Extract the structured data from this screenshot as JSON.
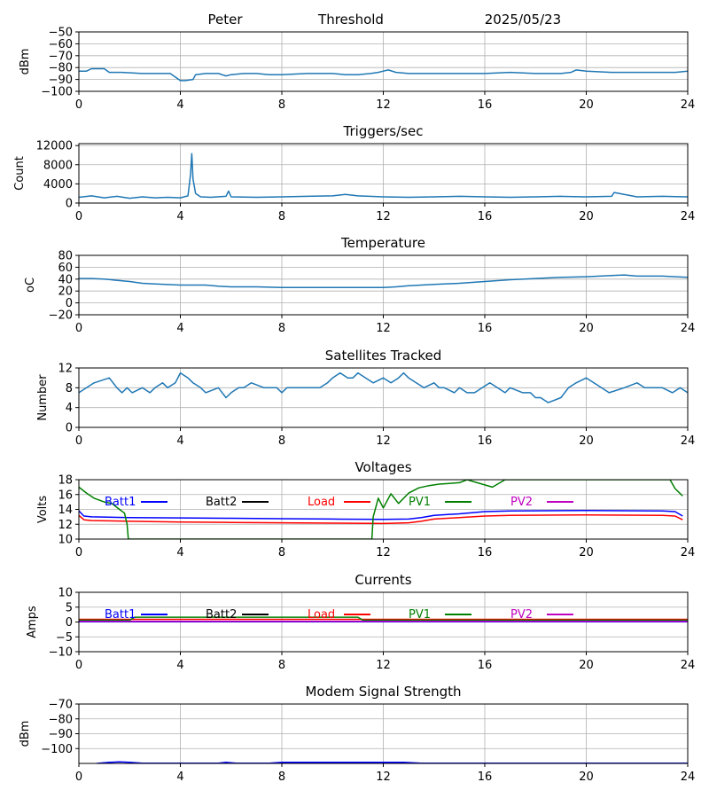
{
  "header": {
    "station": "Peter",
    "mode": "Threshold",
    "date": "2025/05/23"
  },
  "chart_data": [
    {
      "id": "signal",
      "type": "line",
      "title": "",
      "ylabel": "dBm",
      "xlim": [
        0,
        24
      ],
      "xticks": [
        0,
        4,
        8,
        12,
        16,
        20,
        24
      ],
      "ylim": [
        -100,
        -50
      ],
      "yticks": [
        -100,
        -90,
        -80,
        -70,
        -60,
        -50
      ],
      "grid": true,
      "series": [
        {
          "color": "#1f77b4",
          "x": [
            0,
            0.3,
            0.5,
            1.0,
            1.2,
            1.7,
            2.5,
            3.6,
            3.8,
            4.0,
            4.2,
            4.5,
            4.6,
            5.0,
            5.5,
            5.8,
            6.0,
            6.5,
            7.0,
            7.5,
            8.0,
            9.0,
            10.0,
            10.5,
            11.0,
            11.5,
            11.8,
            12.0,
            12.2,
            12.5,
            13.0,
            14.0,
            15.0,
            16.0,
            17.0,
            18.0,
            19.0,
            19.4,
            19.6,
            20.0,
            21.0,
            22.0,
            23.0,
            23.5,
            24
          ],
          "y": [
            -83,
            -83,
            -81,
            -81,
            -84,
            -84,
            -85,
            -85,
            -88,
            -91,
            -91,
            -90,
            -86,
            -85,
            -85,
            -87,
            -86,
            -85,
            -85,
            -86,
            -86,
            -85,
            -85,
            -86,
            -86,
            -85,
            -84,
            -83,
            -82,
            -84,
            -85,
            -85,
            -85,
            -85,
            -84,
            -85,
            -85,
            -84,
            -82,
            -83,
            -84,
            -84,
            -84,
            -84,
            -83
          ]
        }
      ]
    },
    {
      "id": "triggers",
      "type": "line",
      "title": "Triggers/sec",
      "ylabel": "Count",
      "xlim": [
        0,
        24
      ],
      "xticks": [
        0,
        4,
        8,
        12,
        16,
        20,
        24
      ],
      "ylim": [
        0,
        12400
      ],
      "yticks": [
        0,
        4000,
        8000,
        12000
      ],
      "grid": true,
      "series": [
        {
          "color": "#1f77b4",
          "x": [
            0,
            0.5,
            1.0,
            1.5,
            2.0,
            2.5,
            3.0,
            3.5,
            4.0,
            4.3,
            4.4,
            4.45,
            4.5,
            4.6,
            4.8,
            5.2,
            5.8,
            5.9,
            6.0,
            7.0,
            8.0,
            9.0,
            10.0,
            10.5,
            11.0,
            12.0,
            13.0,
            14.0,
            15.0,
            16.0,
            17.0,
            18.0,
            19.0,
            20.0,
            21.0,
            21.1,
            22.0,
            23.0,
            24
          ],
          "y": [
            1200,
            1500,
            1100,
            1400,
            1000,
            1300,
            1100,
            1200,
            1100,
            1500,
            6000,
            10300,
            5000,
            2000,
            1300,
            1200,
            1400,
            2500,
            1300,
            1200,
            1300,
            1400,
            1500,
            1800,
            1500,
            1300,
            1200,
            1300,
            1400,
            1300,
            1200,
            1300,
            1400,
            1300,
            1400,
            2200,
            1300,
            1400,
            1300
          ]
        }
      ]
    },
    {
      "id": "temperature",
      "type": "line",
      "title": "Temperature",
      "ylabel": "oC",
      "xlim": [
        0,
        24
      ],
      "xticks": [
        0,
        4,
        8,
        12,
        16,
        20,
        24
      ],
      "ylim": [
        -20,
        80
      ],
      "yticks": [
        -20,
        0,
        20,
        40,
        60,
        80
      ],
      "grid": true,
      "series": [
        {
          "color": "#1f77b4",
          "x": [
            0,
            0.5,
            1.0,
            2.0,
            2.5,
            3.0,
            4.0,
            4.5,
            5.0,
            5.5,
            6.0,
            7.0,
            8.0,
            9.0,
            10.0,
            11.0,
            12.0,
            12.5,
            13.0,
            14.0,
            15.0,
            16.0,
            17.0,
            18.0,
            19.0,
            20.0,
            21.0,
            21.5,
            22.0,
            23.0,
            23.5,
            24
          ],
          "y": [
            41,
            41,
            40,
            36,
            33,
            32,
            30,
            30,
            30,
            28,
            27,
            27,
            26,
            26,
            26,
            26,
            26,
            27,
            29,
            31,
            33,
            36,
            39,
            41,
            43,
            44,
            46,
            47,
            45,
            45,
            44,
            43
          ]
        }
      ]
    },
    {
      "id": "satellites",
      "type": "line",
      "title": "Satellites Tracked",
      "ylabel": "Number",
      "xlim": [
        0,
        24
      ],
      "xticks": [
        0,
        4,
        8,
        12,
        16,
        20,
        24
      ],
      "ylim": [
        0,
        12
      ],
      "yticks": [
        0,
        4,
        8,
        12
      ],
      "grid": true,
      "series": [
        {
          "color": "#1f77b4",
          "x": [
            0,
            0.3,
            0.6,
            1.2,
            1.5,
            1.7,
            1.9,
            2.1,
            2.5,
            2.8,
            3.0,
            3.3,
            3.5,
            3.8,
            4.0,
            4.3,
            4.5,
            4.8,
            5.0,
            5.5,
            5.8,
            6.0,
            6.3,
            6.5,
            6.8,
            7.3,
            7.8,
            8.0,
            8.2,
            8.5,
            9.0,
            9.5,
            9.8,
            10.0,
            10.3,
            10.6,
            10.8,
            11.0,
            11.3,
            11.6,
            12.0,
            12.3,
            12.6,
            12.8,
            13.0,
            13.3,
            13.6,
            14.0,
            14.2,
            14.4,
            14.8,
            15.0,
            15.3,
            15.6,
            15.9,
            16.2,
            16.5,
            16.8,
            17.0,
            17.5,
            17.8,
            18.0,
            18.2,
            18.5,
            19.0,
            19.3,
            19.6,
            20.0,
            20.3,
            20.6,
            20.9,
            21.5,
            22.0,
            22.3,
            22.6,
            23.0,
            23.4,
            23.7,
            24
          ],
          "y": [
            7,
            8,
            9,
            10,
            8,
            7,
            8,
            7,
            8,
            7,
            8,
            9,
            8,
            9,
            11,
            10,
            9,
            8,
            7,
            8,
            6,
            7,
            8,
            8,
            9,
            8,
            8,
            7,
            8,
            8,
            8,
            8,
            9,
            10,
            11,
            10,
            10,
            11,
            10,
            9,
            10,
            9,
            10,
            11,
            10,
            9,
            8,
            9,
            8,
            8,
            7,
            8,
            7,
            7,
            8,
            9,
            8,
            7,
            8,
            7,
            7,
            6,
            6,
            5,
            6,
            8,
            9,
            10,
            9,
            8,
            7,
            8,
            9,
            8,
            8,
            8,
            7,
            8,
            7
          ]
        }
      ]
    },
    {
      "id": "voltages",
      "type": "line",
      "title": "Voltages",
      "ylabel": "Volts",
      "xlim": [
        0,
        24
      ],
      "xticks": [
        0,
        4,
        8,
        12,
        16,
        20,
        24
      ],
      "ylim": [
        10,
        18
      ],
      "yticks": [
        10,
        12,
        14,
        16,
        18
      ],
      "grid": true,
      "series": [
        {
          "name": "Batt1",
          "color": "#0000ff",
          "x": [
            0,
            0.2,
            0.5,
            2,
            4,
            6,
            8,
            10,
            12,
            13,
            13.5,
            14,
            15,
            16,
            17,
            20,
            23,
            23.5,
            23.8
          ],
          "y": [
            13.8,
            13.1,
            13.0,
            12.9,
            12.85,
            12.8,
            12.75,
            12.7,
            12.65,
            12.7,
            12.9,
            13.2,
            13.4,
            13.7,
            13.8,
            13.85,
            13.8,
            13.7,
            13.1
          ]
        },
        {
          "name": "Batt2",
          "color": "#000000",
          "x": [],
          "y": []
        },
        {
          "name": "Load",
          "color": "#ff0000",
          "x": [
            0,
            0.2,
            0.5,
            2,
            4,
            6,
            8,
            10,
            12,
            13,
            13.5,
            14,
            15,
            16,
            17,
            20,
            23,
            23.5,
            23.8
          ],
          "y": [
            13.2,
            12.6,
            12.5,
            12.4,
            12.3,
            12.25,
            12.2,
            12.15,
            12.1,
            12.2,
            12.4,
            12.7,
            12.9,
            13.1,
            13.2,
            13.25,
            13.2,
            13.1,
            12.6
          ]
        },
        {
          "name": "PV1",
          "color": "#008000",
          "x": [
            0,
            0.3,
            0.6,
            1.0,
            1.3,
            1.6,
            1.8,
            1.9,
            1.95,
            11.55,
            11.6,
            11.8,
            12.0,
            12.3,
            12.6,
            13.0,
            13.4,
            13.8,
            14.2,
            14.6,
            15.0,
            15.3,
            15.7,
            16.0,
            16.3,
            16.6,
            16.8,
            23.3,
            23.5,
            23.8
          ],
          "y": [
            17.0,
            16.2,
            15.5,
            15.0,
            14.8,
            14.0,
            13.5,
            12.0,
            10.0,
            10.0,
            13.0,
            15.5,
            14.2,
            16.1,
            14.8,
            16.2,
            16.9,
            17.2,
            17.4,
            17.5,
            17.6,
            18.0,
            17.6,
            17.3,
            17.0,
            17.6,
            18.0,
            18.0,
            16.8,
            15.8
          ]
        },
        {
          "name": "PV2",
          "color": "#bf00bf",
          "x": [],
          "y": []
        }
      ]
    },
    {
      "id": "currents",
      "type": "line",
      "title": "Currents",
      "ylabel": "Amps",
      "xlim": [
        0,
        24
      ],
      "xticks": [
        0,
        4,
        8,
        12,
        16,
        20,
        24
      ],
      "ylim": [
        -10,
        10
      ],
      "yticks": [
        -10,
        -5,
        0,
        5,
        10
      ],
      "grid": true,
      "series": [
        {
          "name": "Batt1",
          "color": "#0000ff",
          "x": [
            0,
            24
          ],
          "y": [
            0.1,
            0.1
          ]
        },
        {
          "name": "Batt2",
          "color": "#000000",
          "x": [],
          "y": []
        },
        {
          "name": "Load",
          "color": "#ff0000",
          "x": [
            0,
            24
          ],
          "y": [
            0.9,
            0.9
          ]
        },
        {
          "name": "PV1",
          "color": "#008000",
          "x": [
            0,
            2.0,
            2.2,
            11.0,
            11.2,
            24
          ],
          "y": [
            0.6,
            0.6,
            1.6,
            1.6,
            0.6,
            0.6
          ]
        },
        {
          "name": "PV2",
          "color": "#bf00bf",
          "x": [
            0,
            24
          ],
          "y": [
            0.2,
            0.2
          ]
        }
      ]
    },
    {
      "id": "modem",
      "type": "line",
      "title": "Modem Signal Strength",
      "ylabel": "dBm",
      "xlim": [
        0,
        24
      ],
      "xticks": [
        0,
        4,
        8,
        12,
        16,
        20,
        24
      ],
      "ylim": [
        -110,
        -70
      ],
      "yticks": [
        -100,
        -90,
        -80,
        -70
      ],
      "grid": true,
      "series": [
        {
          "name": "",
          "color": "#0000ff",
          "x": [
            0.7,
            1.2,
            1.6,
            2.0,
            2.5,
            4.0,
            5.5,
            5.8,
            6.2,
            7.5,
            8.0,
            12.0,
            12.8,
            13.5,
            15.0,
            16.0,
            16.5,
            24
          ],
          "y": [
            -110,
            -109.3,
            -109.0,
            -109.3,
            -109.8,
            -109.8,
            -109.8,
            -109.3,
            -109.8,
            -109.8,
            -109.3,
            -109.3,
            -109.3,
            -109.8,
            -109.9,
            -109.9,
            -109.8,
            -109.8
          ]
        }
      ]
    }
  ]
}
